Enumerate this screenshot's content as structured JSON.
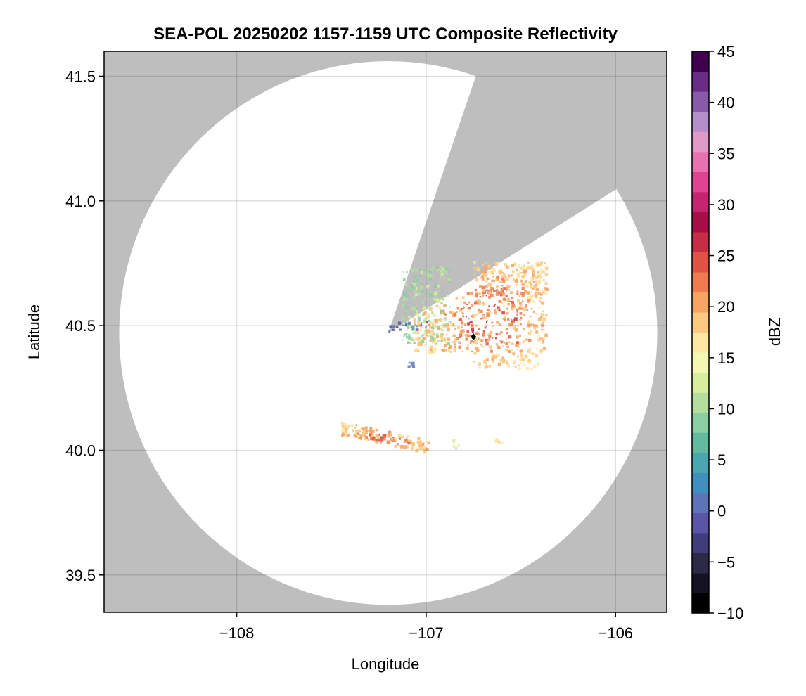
{
  "chart_data": {
    "type": "heatmap",
    "title": "SEA-POL 20250202 1157-1159 UTC Composite Reflectivity",
    "xlabel": "Longitude",
    "ylabel": "Latitude",
    "xlim": [
      -108.7,
      -105.73
    ],
    "ylim": [
      39.35,
      41.6
    ],
    "xticks": [
      -108,
      -107,
      -106
    ],
    "xtick_labels": [
      "−108",
      "−107",
      "−106"
    ],
    "yticks": [
      39.5,
      40.0,
      40.5,
      41.0,
      41.5
    ],
    "ytick_labels": [
      "39.5",
      "40.0",
      "40.5",
      "41.0",
      "41.5"
    ],
    "grid": true,
    "background_color": "#bebebe",
    "radar": {
      "center_lon": -107.2,
      "center_lat": 40.47,
      "range_lat_deg": 1.09,
      "range_lon_deg": 1.42,
      "blocked_sector": {
        "azimuth_from_deg": 19,
        "azimuth_to_deg": 58
      }
    },
    "colorbar": {
      "label": "dBZ",
      "min": -10,
      "max": 45,
      "ticks": [
        -10,
        -5,
        0,
        5,
        10,
        15,
        20,
        25,
        30,
        35,
        40,
        45
      ],
      "tick_labels": [
        "−10",
        "−5",
        "0",
        "5",
        "10",
        "15",
        "20",
        "25",
        "30",
        "35",
        "40",
        "45"
      ],
      "colormap": "Spectral with magenta/purple top",
      "colors": [
        "#000000",
        "#141223",
        "#2b2848",
        "#413c7a",
        "#5a55a6",
        "#5f73b8",
        "#3f8fbf",
        "#4aa6b0",
        "#62bb9f",
        "#8acea4",
        "#b3de9e",
        "#d8ee9f",
        "#f3f7b3",
        "#fde8a3",
        "#fbc97f",
        "#f6a462",
        "#ef7c4f",
        "#de5346",
        "#c42e46",
        "#a50f45",
        "#c5246f",
        "#dd4592",
        "#e872b0",
        "#e199c8",
        "#b58fc9",
        "#8a5aa8",
        "#6a2d87",
        "#3f004d"
      ]
    },
    "echoes": [
      {
        "region": "main cell north-east of radar",
        "lon_range": [
          -107.07,
          -106.37
        ],
        "lat_range": [
          40.33,
          40.76
        ],
        "dbz_typical": 18,
        "dbz_max": 30
      },
      {
        "region": "edge strip west of main cell",
        "lon_range": [
          -107.13,
          -106.88
        ],
        "lat_range": [
          40.43,
          40.74
        ],
        "dbz_typical": 10,
        "dbz_max": 14
      },
      {
        "region": "weak echo near radar",
        "lon_range": [
          -107.2,
          -107.0
        ],
        "lat_range": [
          40.48,
          40.52
        ],
        "dbz_typical": 0,
        "dbz_max": 3
      },
      {
        "region": "southern band",
        "lon_range": [
          -107.45,
          -106.99
        ],
        "lat_range": [
          39.98,
          40.13
        ],
        "dbz_typical": 18,
        "dbz_max": 27
      },
      {
        "region": "small echo east of band",
        "lon_range": [
          -106.88,
          -106.83
        ],
        "lat_range": [
          40.01,
          40.05
        ],
        "dbz_typical": 12,
        "dbz_max": 15
      },
      {
        "region": "small echo far east",
        "lon_range": [
          -106.65,
          -106.6
        ],
        "lat_range": [
          40.03,
          40.05
        ],
        "dbz_typical": 16,
        "dbz_max": 18
      },
      {
        "region": "isolated blip south of radar",
        "lon_range": [
          -107.1,
          -107.07
        ],
        "lat_range": [
          40.34,
          40.36
        ],
        "dbz_typical": 2,
        "dbz_max": 4
      }
    ],
    "marker": {
      "lon": -106.75,
      "lat": 40.455,
      "shape": "diamond",
      "color": "#000000"
    }
  }
}
